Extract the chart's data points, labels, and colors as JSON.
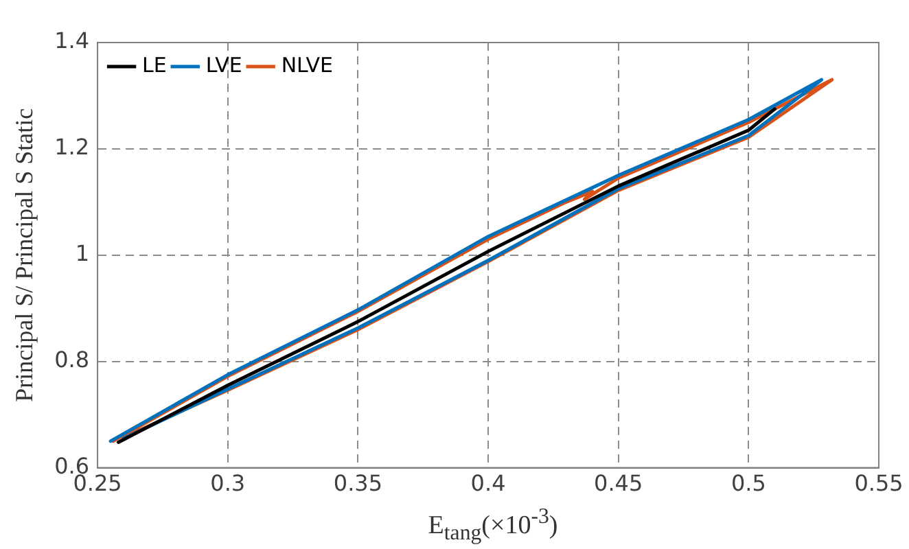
{
  "chart_data": {
    "type": "line",
    "xlabel": "E$_{tang}$(×10$^{-3}$)",
    "ylabel": "Principal S/ Principal S Static",
    "xlim": [
      0.25,
      0.55
    ],
    "xticks": [
      0.25,
      0.3,
      0.35,
      0.4,
      0.45,
      0.5,
      0.55
    ],
    "ylim": [
      0.6,
      1.4
    ],
    "yticks": [
      0.6,
      0.8,
      1,
      1.2,
      1.4
    ],
    "grid": true,
    "legend": "top left",
    "marker": "none",
    "line_style": "solid",
    "series": [
      {
        "name": "LE",
        "color": "#000000",
        "x": [
          0.258,
          0.3,
          0.35,
          0.4,
          0.45,
          0.5,
          0.51
        ],
        "values": [
          0.648,
          0.755,
          0.875,
          1.007,
          1.13,
          1.235,
          1.275
        ]
      },
      {
        "name": "LVE",
        "color": "#0072bd",
        "x": [
          0.255,
          0.3,
          0.35,
          0.4,
          0.45,
          0.5,
          0.528,
          0.528,
          0.5,
          0.45,
          0.4,
          0.35,
          0.3,
          0.26
        ],
        "values": [
          0.65,
          0.775,
          0.897,
          1.035,
          1.15,
          1.255,
          1.33,
          1.33,
          1.225,
          1.125,
          0.99,
          0.863,
          0.748,
          0.655
        ]
      },
      {
        "name": "NLVE",
        "color": "#d95319",
        "x": [
          0.256,
          0.3,
          0.35,
          0.4,
          0.43,
          0.44,
          0.437,
          0.45,
          0.5,
          0.532,
          0.532,
          0.5,
          0.45,
          0.4,
          0.35,
          0.3,
          0.26
        ],
        "values": [
          0.65,
          0.772,
          0.894,
          1.03,
          1.1,
          1.12,
          1.105,
          1.145,
          1.25,
          1.33,
          1.33,
          1.222,
          1.122,
          0.988,
          0.86,
          0.746,
          0.657
        ]
      }
    ]
  }
}
